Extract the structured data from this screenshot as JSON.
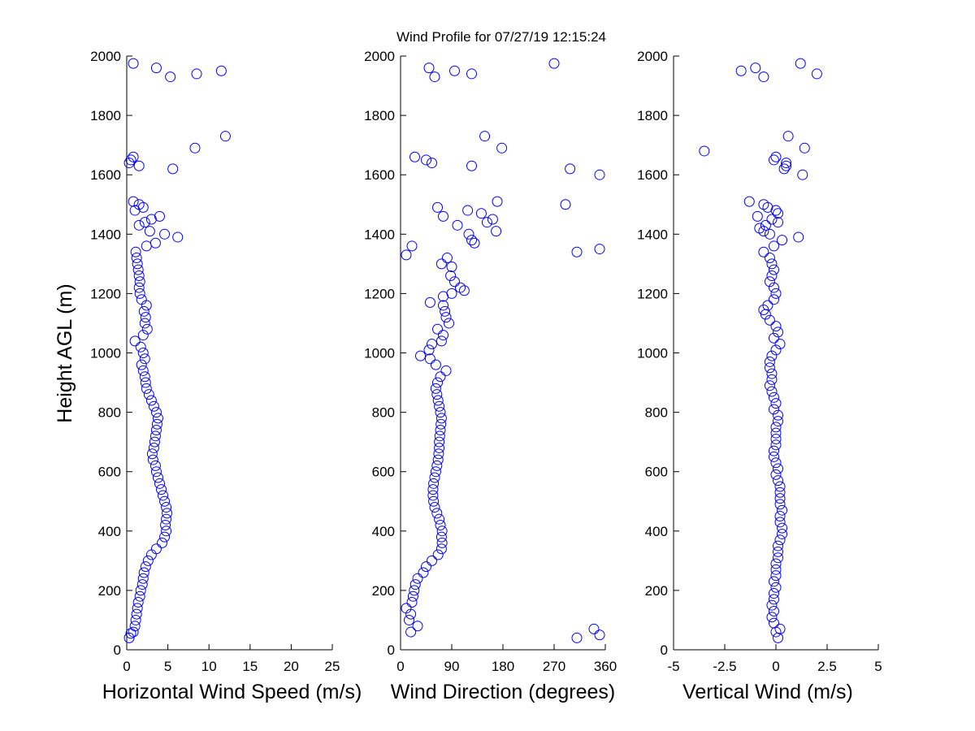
{
  "title": "Wind Profile for  07/27/19 12:15:24",
  "colors": {
    "marker": "#0000ff",
    "axis": "#000000",
    "background": "#ffffff"
  },
  "chart_data": [
    {
      "type": "scatter",
      "marker": "open-circle",
      "xlabel": "Horizontal Wind Speed (m/s)",
      "ylabel": "Height AGL (m)",
      "xlim": [
        0,
        25
      ],
      "ylim": [
        0,
        2000
      ],
      "xticks": [
        0,
        5,
        10,
        15,
        20,
        25
      ],
      "xtick_labels": [
        "0",
        "5",
        "10",
        "15",
        "20",
        "25"
      ],
      "yticks": [
        0,
        200,
        400,
        600,
        800,
        1000,
        1200,
        1400,
        1600,
        1800,
        2000
      ],
      "ytick_labels": [
        "0",
        "200",
        "400",
        "600",
        "800",
        "1000",
        "1200",
        "1400",
        "1600",
        "1800",
        "2000"
      ],
      "grid": false,
      "points": [
        [
          0.3,
          40
        ],
        [
          0.5,
          55
        ],
        [
          0.8,
          60
        ],
        [
          1.0,
          80
        ],
        [
          1.1,
          100
        ],
        [
          1.2,
          120
        ],
        [
          1.3,
          140
        ],
        [
          1.4,
          160
        ],
        [
          1.6,
          180
        ],
        [
          1.7,
          200
        ],
        [
          1.9,
          220
        ],
        [
          2.0,
          240
        ],
        [
          2.1,
          260
        ],
        [
          2.3,
          280
        ],
        [
          2.6,
          300
        ],
        [
          3.0,
          320
        ],
        [
          3.6,
          340
        ],
        [
          4.3,
          360
        ],
        [
          4.6,
          380
        ],
        [
          4.8,
          400
        ],
        [
          4.7,
          420
        ],
        [
          4.8,
          440
        ],
        [
          4.9,
          460
        ],
        [
          4.8,
          480
        ],
        [
          4.6,
          500
        ],
        [
          4.4,
          520
        ],
        [
          4.2,
          540
        ],
        [
          4.0,
          560
        ],
        [
          3.8,
          580
        ],
        [
          3.6,
          600
        ],
        [
          3.5,
          620
        ],
        [
          3.2,
          640
        ],
        [
          3.1,
          660
        ],
        [
          3.3,
          680
        ],
        [
          3.4,
          700
        ],
        [
          3.5,
          720
        ],
        [
          3.6,
          740
        ],
        [
          3.7,
          760
        ],
        [
          3.8,
          780
        ],
        [
          3.6,
          800
        ],
        [
          3.3,
          820
        ],
        [
          3.0,
          840
        ],
        [
          2.7,
          860
        ],
        [
          2.4,
          880
        ],
        [
          2.3,
          900
        ],
        [
          2.2,
          920
        ],
        [
          2.0,
          940
        ],
        [
          1.8,
          960
        ],
        [
          2.2,
          980
        ],
        [
          2.0,
          1000
        ],
        [
          1.7,
          1020
        ],
        [
          1.0,
          1040
        ],
        [
          2.0,
          1060
        ],
        [
          2.5,
          1080
        ],
        [
          2.2,
          1100
        ],
        [
          2.3,
          1120
        ],
        [
          2.1,
          1140
        ],
        [
          2.4,
          1160
        ],
        [
          1.8,
          1180
        ],
        [
          1.6,
          1200
        ],
        [
          1.5,
          1220
        ],
        [
          1.6,
          1240
        ],
        [
          1.5,
          1260
        ],
        [
          1.4,
          1280
        ],
        [
          1.3,
          1300
        ],
        [
          1.2,
          1320
        ],
        [
          1.1,
          1340
        ],
        [
          2.4,
          1360
        ],
        [
          3.5,
          1370
        ],
        [
          4.6,
          1400
        ],
        [
          6.2,
          1390
        ],
        [
          2.8,
          1410
        ],
        [
          2.2,
          1440
        ],
        [
          1.5,
          1430
        ],
        [
          3.0,
          1450
        ],
        [
          4.0,
          1460
        ],
        [
          1.0,
          1480
        ],
        [
          2.0,
          1490
        ],
        [
          1.5,
          1500
        ],
        [
          0.8,
          1510
        ],
        [
          1.5,
          1630
        ],
        [
          0.3,
          1640
        ],
        [
          0.5,
          1650
        ],
        [
          0.8,
          1660
        ],
        [
          5.6,
          1620
        ],
        [
          8.3,
          1690
        ],
        [
          12.0,
          1730
        ],
        [
          5.3,
          1930
        ],
        [
          8.5,
          1940
        ],
        [
          11.5,
          1950
        ],
        [
          3.6,
          1960
        ],
        [
          0.8,
          1975
        ]
      ]
    },
    {
      "type": "scatter",
      "marker": "open-circle",
      "xlabel": "Wind Direction (degrees)",
      "xlim": [
        0,
        360
      ],
      "ylim": [
        0,
        2000
      ],
      "xticks": [
        0,
        90,
        180,
        270,
        360
      ],
      "xtick_labels": [
        "0",
        "90",
        "180",
        "270",
        "360"
      ],
      "yticks": [
        0,
        200,
        400,
        600,
        800,
        1000,
        1200,
        1400,
        1600,
        1800,
        2000
      ],
      "ytick_labels": [
        "0",
        "200",
        "400",
        "600",
        "800",
        "1000",
        "1200",
        "1400",
        "1600",
        "1800",
        "2000"
      ],
      "grid": false,
      "points": [
        [
          310,
          40
        ],
        [
          350,
          50
        ],
        [
          18,
          60
        ],
        [
          340,
          70
        ],
        [
          30,
          80
        ],
        [
          15,
          100
        ],
        [
          18,
          120
        ],
        [
          10,
          140
        ],
        [
          20,
          160
        ],
        [
          22,
          180
        ],
        [
          24,
          200
        ],
        [
          26,
          220
        ],
        [
          30,
          240
        ],
        [
          40,
          260
        ],
        [
          45,
          280
        ],
        [
          55,
          300
        ],
        [
          66,
          320
        ],
        [
          72,
          340
        ],
        [
          73,
          360
        ],
        [
          72,
          380
        ],
        [
          73,
          400
        ],
        [
          70,
          420
        ],
        [
          68,
          440
        ],
        [
          64,
          460
        ],
        [
          60,
          480
        ],
        [
          58,
          500
        ],
        [
          57,
          520
        ],
        [
          57,
          540
        ],
        [
          58,
          560
        ],
        [
          60,
          580
        ],
        [
          62,
          600
        ],
        [
          64,
          620
        ],
        [
          66,
          640
        ],
        [
          67,
          660
        ],
        [
          68,
          680
        ],
        [
          68,
          700
        ],
        [
          69,
          720
        ],
        [
          70,
          740
        ],
        [
          71,
          760
        ],
        [
          72,
          780
        ],
        [
          70,
          800
        ],
        [
          68,
          820
        ],
        [
          66,
          840
        ],
        [
          64,
          860
        ],
        [
          62,
          880
        ],
        [
          65,
          900
        ],
        [
          70,
          920
        ],
        [
          80,
          940
        ],
        [
          62,
          960
        ],
        [
          52,
          980
        ],
        [
          35,
          990
        ],
        [
          50,
          1010
        ],
        [
          55,
          1030
        ],
        [
          72,
          1040
        ],
        [
          75,
          1060
        ],
        [
          65,
          1080
        ],
        [
          85,
          1100
        ],
        [
          80,
          1120
        ],
        [
          78,
          1140
        ],
        [
          75,
          1160
        ],
        [
          52,
          1170
        ],
        [
          75,
          1190
        ],
        [
          90,
          1200
        ],
        [
          112,
          1210
        ],
        [
          105,
          1220
        ],
        [
          95,
          1240
        ],
        [
          88,
          1260
        ],
        [
          90,
          1290
        ],
        [
          72,
          1300
        ],
        [
          82,
          1320
        ],
        [
          10,
          1330
        ],
        [
          20,
          1360
        ],
        [
          130,
          1370
        ],
        [
          125,
          1380
        ],
        [
          310,
          1340
        ],
        [
          350,
          1350
        ],
        [
          120,
          1400
        ],
        [
          168,
          1410
        ],
        [
          100,
          1430
        ],
        [
          152,
          1440
        ],
        [
          162,
          1450
        ],
        [
          118,
          1480
        ],
        [
          142,
          1470
        ],
        [
          290,
          1500
        ],
        [
          65,
          1490
        ],
        [
          170,
          1510
        ],
        [
          75,
          1460
        ],
        [
          298,
          1620
        ],
        [
          350,
          1600
        ],
        [
          125,
          1630
        ],
        [
          55,
          1640
        ],
        [
          45,
          1650
        ],
        [
          25,
          1660
        ],
        [
          178,
          1690
        ],
        [
          148,
          1730
        ],
        [
          95,
          1950
        ],
        [
          125,
          1940
        ],
        [
          60,
          1930
        ],
        [
          50,
          1960
        ],
        [
          270,
          1975
        ]
      ]
    },
    {
      "type": "scatter",
      "marker": "open-circle",
      "xlabel": "Vertical Wind (m/s)",
      "xlim": [
        -5,
        5
      ],
      "ylim": [
        0,
        2000
      ],
      "xticks": [
        -5,
        -2.5,
        0,
        2.5,
        5
      ],
      "xtick_labels": [
        "-5",
        "-2.5",
        "0",
        "2.5",
        "5"
      ],
      "yticks": [
        0,
        200,
        400,
        600,
        800,
        1000,
        1200,
        1400,
        1600,
        1800,
        2000
      ],
      "ytick_labels": [
        "0",
        "200",
        "400",
        "600",
        "800",
        "1000",
        "1200",
        "1400",
        "1600",
        "1800",
        "2000"
      ],
      "grid": false,
      "points": [
        [
          0.1,
          40
        ],
        [
          0.0,
          60
        ],
        [
          0.2,
          70
        ],
        [
          -0.1,
          90
        ],
        [
          -0.2,
          110
        ],
        [
          -0.1,
          130
        ],
        [
          -0.2,
          150
        ],
        [
          -0.1,
          170
        ],
        [
          -0.1,
          190
        ],
        [
          0.0,
          210
        ],
        [
          -0.1,
          230
        ],
        [
          0.0,
          250
        ],
        [
          0.0,
          270
        ],
        [
          0.0,
          290
        ],
        [
          0.1,
          310
        ],
        [
          0.1,
          330
        ],
        [
          0.1,
          350
        ],
        [
          0.2,
          370
        ],
        [
          0.3,
          390
        ],
        [
          0.3,
          410
        ],
        [
          0.2,
          430
        ],
        [
          0.2,
          450
        ],
        [
          0.3,
          470
        ],
        [
          0.2,
          490
        ],
        [
          0.2,
          510
        ],
        [
          0.2,
          530
        ],
        [
          0.2,
          550
        ],
        [
          0.1,
          570
        ],
        [
          0.0,
          590
        ],
        [
          0.1,
          610
        ],
        [
          0.0,
          630
        ],
        [
          -0.1,
          650
        ],
        [
          -0.1,
          670
        ],
        [
          0.0,
          690
        ],
        [
          0.0,
          710
        ],
        [
          0.0,
          730
        ],
        [
          0.0,
          750
        ],
        [
          0.1,
          770
        ],
        [
          0.1,
          790
        ],
        [
          -0.1,
          810
        ],
        [
          0.0,
          830
        ],
        [
          -0.1,
          850
        ],
        [
          -0.2,
          870
        ],
        [
          -0.3,
          890
        ],
        [
          -0.2,
          910
        ],
        [
          -0.2,
          930
        ],
        [
          -0.3,
          950
        ],
        [
          -0.3,
          970
        ],
        [
          -0.2,
          990
        ],
        [
          0.0,
          1010
        ],
        [
          0.2,
          1030
        ],
        [
          -0.1,
          1050
        ],
        [
          0.1,
          1070
        ],
        [
          0.0,
          1090
        ],
        [
          -0.3,
          1110
        ],
        [
          -0.5,
          1130
        ],
        [
          -0.6,
          1145
        ],
        [
          -0.4,
          1160
        ],
        [
          -0.1,
          1180
        ],
        [
          0.0,
          1200
        ],
        [
          -0.1,
          1220
        ],
        [
          -0.3,
          1240
        ],
        [
          -0.2,
          1260
        ],
        [
          -0.1,
          1280
        ],
        [
          -0.2,
          1300
        ],
        [
          -0.3,
          1320
        ],
        [
          -0.6,
          1340
        ],
        [
          -0.1,
          1360
        ],
        [
          0.3,
          1380
        ],
        [
          1.1,
          1390
        ],
        [
          -0.6,
          1410
        ],
        [
          -0.3,
          1400
        ],
        [
          -0.8,
          1420
        ],
        [
          -0.5,
          1430
        ],
        [
          0.1,
          1440
        ],
        [
          -0.2,
          1450
        ],
        [
          -0.9,
          1460
        ],
        [
          0.1,
          1470
        ],
        [
          0.0,
          1480
        ],
        [
          -0.4,
          1490
        ],
        [
          -0.6,
          1500
        ],
        [
          -1.3,
          1510
        ],
        [
          0.4,
          1620
        ],
        [
          0.5,
          1630
        ],
        [
          0.5,
          1640
        ],
        [
          -0.1,
          1650
        ],
        [
          0.0,
          1660
        ],
        [
          1.3,
          1600
        ],
        [
          -3.5,
          1680
        ],
        [
          1.4,
          1690
        ],
        [
          0.6,
          1730
        ],
        [
          -1.7,
          1950
        ],
        [
          -1.0,
          1960
        ],
        [
          -0.6,
          1930
        ],
        [
          2.0,
          1940
        ],
        [
          1.2,
          1975
        ]
      ]
    }
  ]
}
